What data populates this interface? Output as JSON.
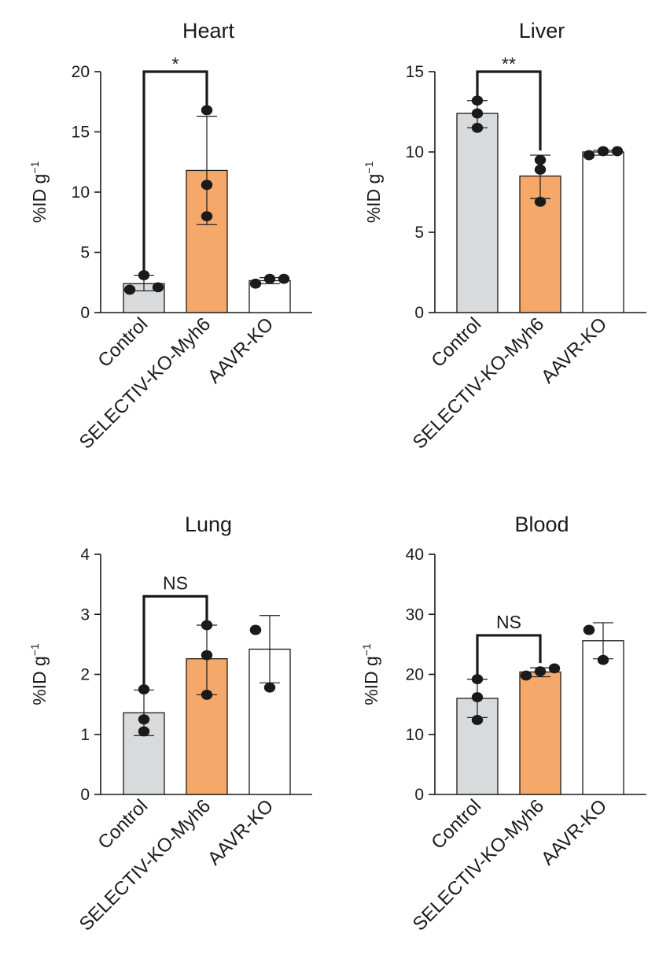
{
  "ylabel": {
    "main": "%ID g",
    "sup": "−1"
  },
  "colors": {
    "control": "#d9dadb",
    "selectiv": "#f4a86a",
    "aavr": "#ffffff",
    "ink": "#1a1a1a"
  },
  "chart_data": [
    {
      "type": "bar",
      "title": "Heart",
      "categories": [
        "Control",
        "SELECTIV-KO-Myh6",
        "AAVR-KO"
      ],
      "values": [
        2.4,
        11.8,
        2.65
      ],
      "error": [
        [
          1.8,
          3.1
        ],
        [
          7.3,
          16.3
        ],
        [
          2.4,
          2.9
        ]
      ],
      "points": [
        [
          1.9,
          2.1,
          3.1
        ],
        [
          8.0,
          10.6,
          16.8
        ],
        [
          2.4,
          2.8,
          2.8
        ]
      ],
      "ylim": [
        0,
        20
      ],
      "yticks": [
        0,
        5,
        10,
        15,
        20
      ],
      "significance": {
        "label": "*",
        "from": 0,
        "to": 1,
        "level": 20
      }
    },
    {
      "type": "bar",
      "title": "Liver",
      "categories": [
        "Control",
        "SELECTIV-KO-Myh6",
        "AAVR-KO"
      ],
      "values": [
        12.4,
        8.5,
        10.0
      ],
      "error": [
        [
          11.5,
          13.2
        ],
        [
          7.1,
          9.8
        ],
        [
          9.8,
          10.1
        ]
      ],
      "points": [
        [
          11.5,
          12.4,
          13.2
        ],
        [
          6.9,
          8.9,
          9.5
        ],
        [
          9.8,
          10.05,
          10.05
        ]
      ],
      "ylim": [
        0,
        15
      ],
      "yticks": [
        0,
        5,
        10,
        15
      ],
      "significance": {
        "label": "**",
        "from": 0,
        "to": 1,
        "level": 15
      }
    },
    {
      "type": "bar",
      "title": "Lung",
      "categories": [
        "Control",
        "SELECTIV-KO-Myh6",
        "AAVR-KO"
      ],
      "values": [
        1.36,
        2.26,
        2.42
      ],
      "error": [
        [
          0.98,
          1.74
        ],
        [
          1.66,
          2.82
        ],
        [
          1.86,
          2.98
        ]
      ],
      "points": [
        [
          1.05,
          1.25,
          1.75
        ],
        [
          1.66,
          2.32,
          2.82
        ],
        [
          1.78,
          2.74,
          2.74
        ]
      ],
      "ylim": [
        0,
        4
      ],
      "yticks": [
        0,
        1,
        2,
        3,
        4
      ],
      "significance": {
        "label": "NS",
        "from": 0,
        "to": 1,
        "level": 3.3
      }
    },
    {
      "type": "bar",
      "title": "Blood",
      "categories": [
        "Control",
        "SELECTIV-KO-Myh6",
        "AAVR-KO"
      ],
      "values": [
        16.0,
        20.4,
        25.6
      ],
      "error": [
        [
          12.8,
          19.2
        ],
        [
          19.6,
          21.1
        ],
        [
          22.6,
          28.6
        ]
      ],
      "points": [
        [
          12.4,
          16.2,
          19.2
        ],
        [
          19.8,
          20.5,
          21.0
        ],
        [
          22.4,
          27.4,
          27.4
        ]
      ],
      "ylim": [
        0,
        40
      ],
      "yticks": [
        0,
        10,
        20,
        30,
        40
      ],
      "significance": {
        "label": "NS",
        "from": 0,
        "to": 1,
        "level": 26.5
      }
    }
  ]
}
